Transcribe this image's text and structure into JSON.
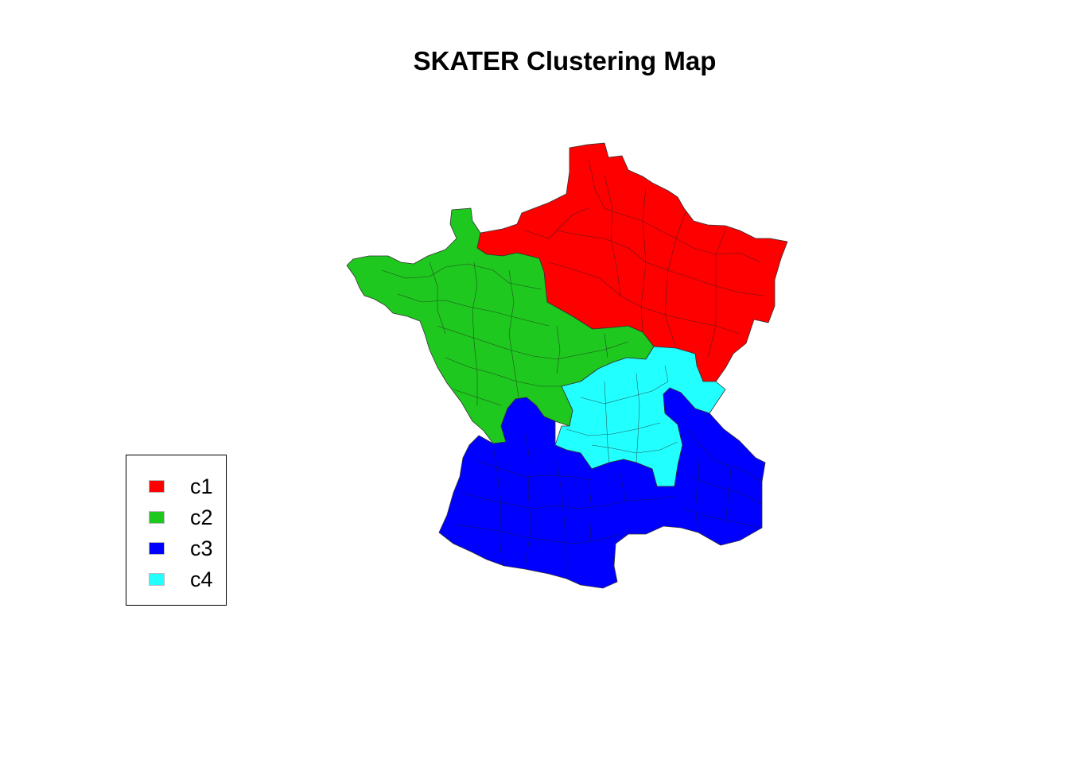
{
  "map": {
    "title": "SKATER Clustering Map",
    "region": "France departments",
    "border_color": "#333333"
  },
  "legend": {
    "items": [
      {
        "label": "c1",
        "color": "#ff0000"
      },
      {
        "label": "c2",
        "color": "#1ec81e"
      },
      {
        "label": "c3",
        "color": "#0000ff"
      },
      {
        "label": "c4",
        "color": "#22ffff"
      }
    ]
  },
  "clusters": [
    {
      "id": "c1",
      "color": "#ff0000"
    },
    {
      "id": "c2",
      "color": "#1ec81e"
    },
    {
      "id": "c3",
      "color": "#0000ff"
    },
    {
      "id": "c4",
      "color": "#22ffff"
    }
  ]
}
